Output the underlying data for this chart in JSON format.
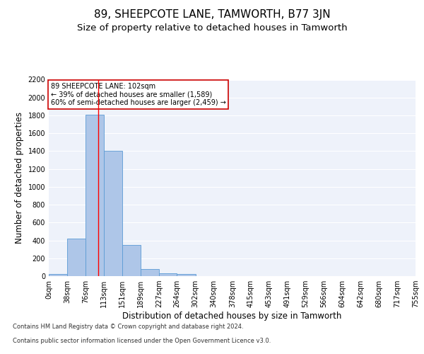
{
  "title": "89, SHEEPCOTE LANE, TAMWORTH, B77 3JN",
  "subtitle": "Size of property relative to detached houses in Tamworth",
  "xlabel": "Distribution of detached houses by size in Tamworth",
  "ylabel": "Number of detached properties",
  "footer_line1": "Contains HM Land Registry data © Crown copyright and database right 2024.",
  "footer_line2": "Contains public sector information licensed under the Open Government Licence v3.0.",
  "annotation_line1": "89 SHEEPCOTE LANE: 102sqm",
  "annotation_line2": "← 39% of detached houses are smaller (1,589)",
  "annotation_line3": "60% of semi-detached houses are larger (2,459) →",
  "bar_color": "#aec6e8",
  "bar_edge_color": "#5b9bd5",
  "red_line_x": 102,
  "bin_edges": [
    0,
    38,
    76,
    113,
    151,
    189,
    227,
    264,
    302,
    340,
    378,
    415,
    453,
    491,
    529,
    566,
    604,
    642,
    680,
    717,
    755
  ],
  "bar_heights": [
    20,
    420,
    1810,
    1400,
    350,
    80,
    30,
    20,
    0,
    0,
    0,
    0,
    0,
    0,
    0,
    0,
    0,
    0,
    0,
    0
  ],
  "ylim": [
    0,
    2200
  ],
  "yticks": [
    0,
    200,
    400,
    600,
    800,
    1000,
    1200,
    1400,
    1600,
    1800,
    2000,
    2200
  ],
  "background_color": "#eef2fa",
  "grid_color": "#ffffff",
  "title_fontsize": 11,
  "subtitle_fontsize": 9.5,
  "ylabel_fontsize": 8.5,
  "xlabel_fontsize": 8.5,
  "tick_fontsize": 7,
  "annotation_fontsize": 7,
  "footer_fontsize": 6,
  "annotation_box_color": "#ffffff",
  "annotation_box_edge": "#cc0000"
}
